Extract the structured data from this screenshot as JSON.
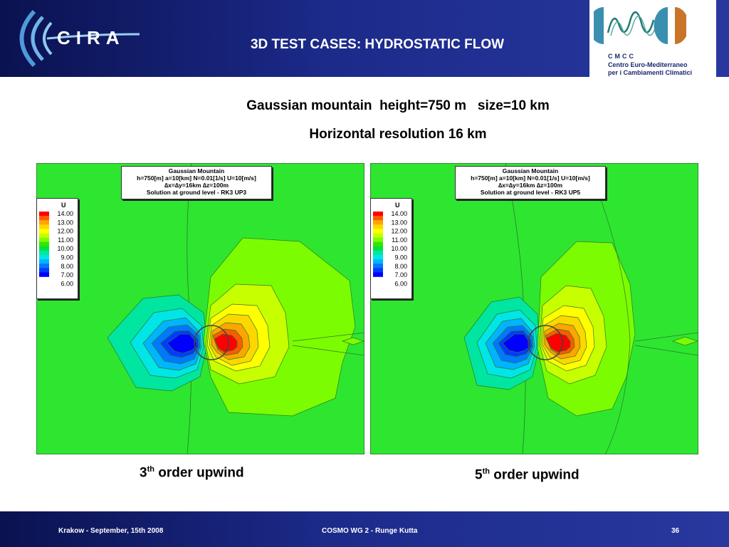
{
  "header": {
    "title": "3D TEST CASES:  HYDROSTATIC FLOW",
    "logo_left": "CIRA",
    "logo_right": {
      "acronym": "CMCC",
      "line1": "Centro Euro-Mediterraneo",
      "line2": "per i Cambiamenti Climatici"
    }
  },
  "subtitle1": "Gaussian mountain  height=750 m   size=10 km",
  "subtitle2": "Horizontal resolution 16 km",
  "plots": [
    {
      "info_lines": [
        "Gaussian Mountain",
        "h=750[m]  a=10[km]  N=0.01[1/s]  U=10[m/s]",
        "∆x=∆y=16km  ∆z=100m",
        "Solution at ground level  -  RK3 UP3"
      ],
      "legend_title": "U",
      "legend_values": [
        "14.00",
        "13.00",
        "12.00",
        "11.00",
        "10.00",
        "9.00",
        "8.00",
        "7.00",
        "6.00"
      ],
      "caption_num": "3",
      "caption_sup": "th",
      "caption_text": " order upwind"
    },
    {
      "info_lines": [
        "Gaussian Mountain",
        "h=750[m]  a=10[km]  N=0.01[1/s]  U=10[m/s]",
        "∆x=∆y=16km  ∆z=100m",
        "Solution at ground level  -  RK3 UP5"
      ],
      "legend_title": "U",
      "legend_values": [
        "14.00",
        "13.00",
        "12.00",
        "11.00",
        "10.00",
        "9.00",
        "8.00",
        "7.00",
        "6.00"
      ],
      "caption_num": "5",
      "caption_sup": "th",
      "caption_text": " order upwind"
    }
  ],
  "legend_colors": [
    "#ff0000",
    "#ff5a00",
    "#ffa500",
    "#ffd700",
    "#ffff00",
    "#c8ff00",
    "#7cfc00",
    "#32e600",
    "#00e23a",
    "#00e6a0",
    "#00e6e6",
    "#00b4ff",
    "#0078ff",
    "#003cff",
    "#0000ff"
  ],
  "footer": {
    "left": "Krakow - September, 15th 2008",
    "center": "COSMO WG 2 - Runge Kutta",
    "page": "36"
  }
}
